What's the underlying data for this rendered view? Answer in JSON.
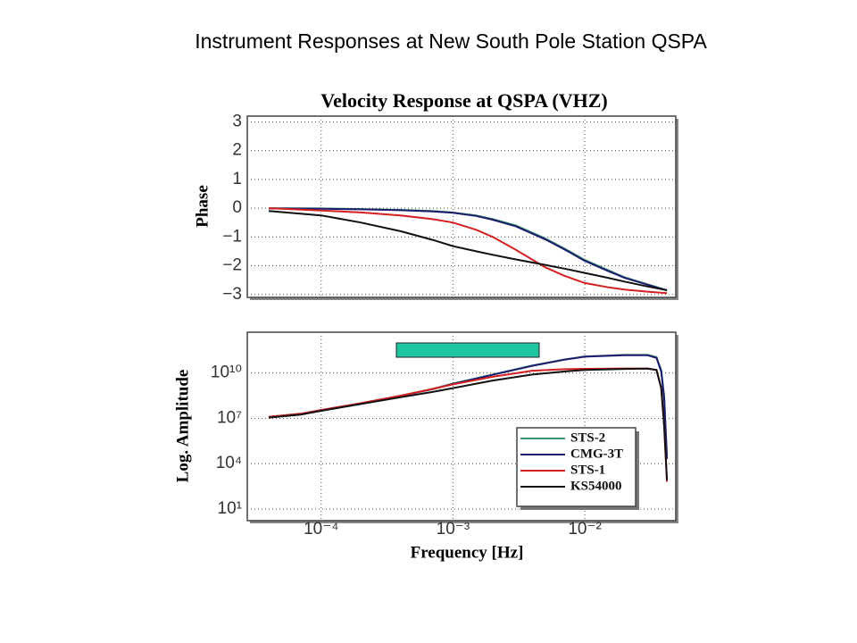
{
  "page_title": "Instrument Responses at New South Pole Station QSPA",
  "chart_data": [
    {
      "type": "line",
      "title": "Velocity Response at QSPA (VHZ)",
      "ylabel": "Phase",
      "xscale": "log",
      "xlim": [
        2.75e-05,
        0.049
      ],
      "xticks": [
        0.0001,
        0.001,
        0.01
      ],
      "ylim": [
        -3.1,
        3.2
      ],
      "yticks": [
        3,
        2,
        1,
        0,
        {
          "value": -1,
          "label": "−1"
        },
        {
          "value": -2,
          "label": "−2"
        },
        {
          "value": -3,
          "label": "−3"
        }
      ],
      "grid": true,
      "x": [
        4e-05,
        0.0001,
        0.0002,
        0.0004,
        0.0007,
        0.001,
        0.0015,
        0.002,
        0.003,
        0.005,
        0.007,
        0.01,
        0.015,
        0.02,
        0.03,
        0.042
      ],
      "series": [
        {
          "color": "#3f8f73",
          "values": [
            0,
            -0.01,
            -0.03,
            -0.06,
            -0.1,
            -0.15,
            -0.25,
            -0.38,
            -0.6,
            -1.05,
            -1.4,
            -1.8,
            -2.15,
            -2.4,
            -2.65,
            -2.85
          ]
        },
        {
          "color": "#1c1c6e",
          "values": [
            -0.01,
            -0.02,
            -0.04,
            -0.07,
            -0.11,
            -0.16,
            -0.27,
            -0.4,
            -0.63,
            -1.08,
            -1.43,
            -1.83,
            -2.18,
            -2.42,
            -2.66,
            -2.86
          ]
        },
        {
          "color": "#d42020",
          "values": [
            0,
            -0.08,
            -0.15,
            -0.25,
            -0.38,
            -0.5,
            -0.75,
            -1.0,
            -1.45,
            -2.05,
            -2.35,
            -2.6,
            -2.75,
            -2.83,
            -2.9,
            -2.95
          ]
        },
        {
          "color": "#111111",
          "values": [
            -0.1,
            -0.25,
            -0.5,
            -0.8,
            -1.1,
            -1.32,
            -1.5,
            -1.62,
            -1.78,
            -1.97,
            -2.1,
            -2.25,
            -2.42,
            -2.55,
            -2.72,
            -2.85
          ]
        }
      ]
    },
    {
      "type": "line",
      "ylabel": "Log. Amplitude",
      "xlabel": "Frequency [Hz]",
      "xscale": "log",
      "yscale": "log",
      "xlim": [
        2.75e-05,
        0.049
      ],
      "xticks": [
        {
          "value": 0.0001,
          "label": "10⁻⁴"
        },
        {
          "value": 0.001,
          "label": "10⁻³"
        },
        {
          "value": 0.01,
          "label": "10⁻²"
        }
      ],
      "ylim": [
        1.7,
        5000000000000
      ],
      "yticks": [
        {
          "value": 10,
          "label": "10¹"
        },
        {
          "value": 10000,
          "label": "10⁴"
        },
        {
          "value": 10000000,
          "label": "10⁷"
        },
        {
          "value": 10000000000,
          "label": "10¹⁰"
        }
      ],
      "grid": true,
      "legend": "lower right",
      "x": [
        4e-05,
        7e-05,
        0.0001,
        0.0002,
        0.0004,
        0.0007,
        0.001,
        0.002,
        0.004,
        0.007,
        0.01,
        0.02,
        0.03,
        0.035,
        0.038,
        0.04,
        0.042
      ],
      "series": [
        {
          "name": "STS-2",
          "color": "#3f8f73",
          "values": [
            12600000,
            20000000,
            35500000,
            100000000,
            316000000,
            890000000,
            2000000000,
            7900000000,
            31600000000,
            79000000000,
            126000000000,
            158000000000,
            158000000000,
            112000000000,
            15800000000,
            316000000,
            31600
          ]
        },
        {
          "name": "CMG-3T",
          "color": "#1c1c6e",
          "values": [
            12000000,
            19000000,
            34000000,
            95000000,
            300000000,
            850000000,
            1900000000,
            7600000000,
            30000000000,
            76000000000,
            120000000000,
            150000000000,
            150000000000,
            100000000000,
            12600000000,
            200000000,
            20000
          ]
        },
        {
          "name": "STS-1",
          "color": "#d42020",
          "values": [
            12600000,
            20000000,
            35500000,
            100000000,
            316000000,
            890000000,
            1780000000,
            5600000000,
            14100000000,
            17800000000,
            19000000000,
            20000000000,
            20000000000,
            15800000000,
            1000000000,
            3160000,
            631
          ]
        },
        {
          "name": "KS54000",
          "color": "#111111",
          "values": [
            11200000,
            17800000,
            31600000,
            89000000,
            250000000,
            560000000,
            1000000000,
            3160000000,
            7900000000,
            12600000000,
            15800000000,
            18600000000,
            19500000000,
            15800000000,
            1000000000,
            3160000,
            794
          ]
        }
      ]
    }
  ]
}
